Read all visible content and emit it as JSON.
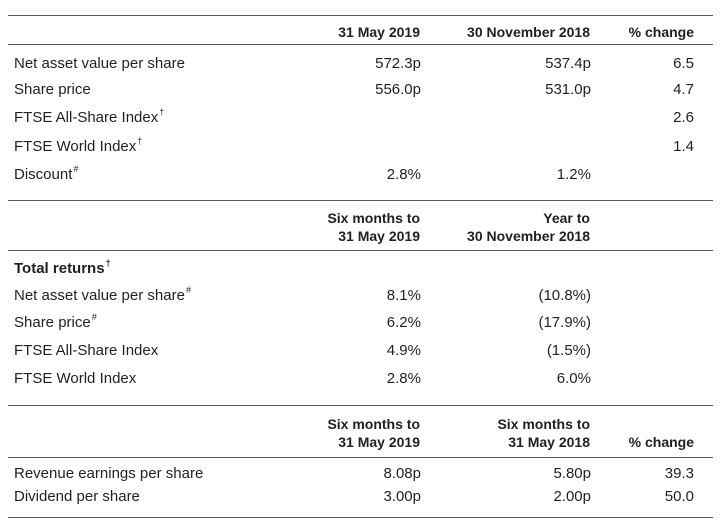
{
  "summary": {
    "headers": {
      "col1": "31 May 2019",
      "col2": "30 November 2018",
      "col3": "% change"
    },
    "rows": [
      {
        "label": "Net asset value per share",
        "col1": "572.3p",
        "col2": "537.4p",
        "col3": "6.5"
      },
      {
        "label": "Share price",
        "col1": "556.0p",
        "col2": "531.0p",
        "col3": "4.7"
      },
      {
        "label": "FTSE All-Share Index",
        "note": "†",
        "col3": "2.6"
      },
      {
        "label": "FTSE World Index",
        "note": "†",
        "col3": "1.4"
      },
      {
        "label": "Discount",
        "note": "#",
        "col1": "2.8%",
        "col2": "1.2%"
      }
    ]
  },
  "total_returns": {
    "headers": {
      "col1_line1": "Six months to",
      "col1_line2": "31 May 2019",
      "col2_line1": "Year to",
      "col2_line2": "30 November 2018"
    },
    "title": "Total returns",
    "title_note": "†",
    "rows": [
      {
        "label": "Net asset value per share",
        "note": "#",
        "col1": "8.1%",
        "col2": "(10.8%)"
      },
      {
        "label": "Share price",
        "note": "#",
        "col1": "6.2%",
        "col2": "(17.9%)"
      },
      {
        "label": "FTSE All-Share Index",
        "col1": "4.9%",
        "col2": "(1.5%)"
      },
      {
        "label": "FTSE World Index",
        "col1": "2.8%",
        "col2": "6.0%"
      }
    ]
  },
  "earnings": {
    "headers": {
      "col1_line1": "Six months to",
      "col1_line2": "31 May 2019",
      "col2_line1": "Six months to",
      "col2_line2": "31 May 2018",
      "col3": "% change"
    },
    "rows": [
      {
        "label": "Revenue earnings per share",
        "col1": "8.08p",
        "col2": "5.80p",
        "col3": "39.3"
      },
      {
        "label": "Dividend per share",
        "col1": "3.00p",
        "col2": "2.00p",
        "col3": "50.0"
      }
    ]
  }
}
